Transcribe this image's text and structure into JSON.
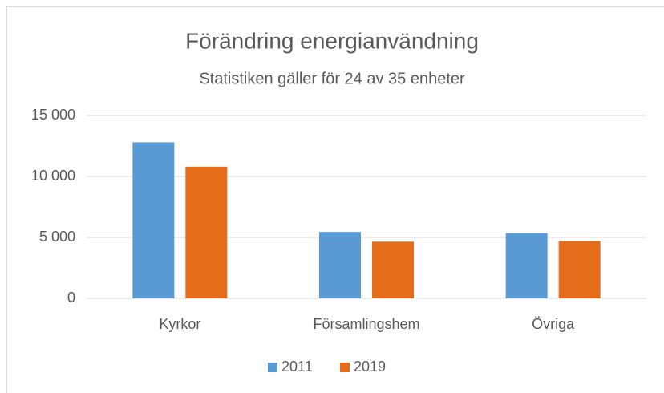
{
  "chart_data": {
    "type": "bar",
    "title": "Förändring energianvändning",
    "subtitle": "Statistiken gäller för 24 av 35 enheter",
    "categories": [
      "Kyrkor",
      "Församlingshem",
      "Övriga"
    ],
    "series": [
      {
        "name": "2011",
        "color": "#5b9bd5",
        "values": [
          12800,
          5450,
          5350
        ]
      },
      {
        "name": "2019",
        "color": "#e46c1a",
        "values": [
          10800,
          4650,
          4700
        ]
      }
    ],
    "ylim": [
      0,
      15000
    ],
    "yticks": [
      0,
      {
        "value": 5000,
        "label": "5 000"
      },
      {
        "value": 10000,
        "label": "10 000"
      },
      {
        "value": 15000,
        "label": "15 000"
      }
    ],
    "grid": true,
    "legend": "bottom"
  }
}
